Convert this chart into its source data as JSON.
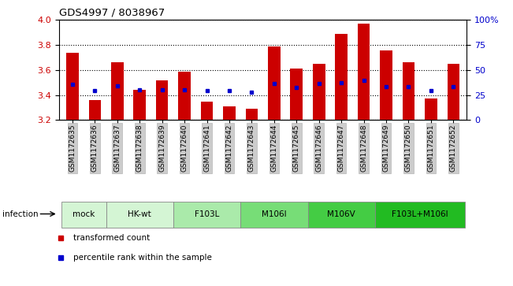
{
  "title": "GDS4997 / 8038967",
  "samples": [
    "GSM1172635",
    "GSM1172636",
    "GSM1172637",
    "GSM1172638",
    "GSM1172639",
    "GSM1172640",
    "GSM1172641",
    "GSM1172642",
    "GSM1172643",
    "GSM1172644",
    "GSM1172645",
    "GSM1172646",
    "GSM1172647",
    "GSM1172648",
    "GSM1172649",
    "GSM1172650",
    "GSM1172651",
    "GSM1172652"
  ],
  "transformed_counts": [
    3.74,
    3.36,
    3.66,
    3.44,
    3.52,
    3.59,
    3.35,
    3.31,
    3.29,
    3.79,
    3.61,
    3.65,
    3.89,
    3.97,
    3.76,
    3.66,
    3.37,
    3.65
  ],
  "percentile_ranks": [
    3.485,
    3.435,
    3.475,
    3.44,
    3.445,
    3.445,
    3.435,
    3.435,
    3.425,
    3.49,
    3.46,
    3.49,
    3.5,
    3.515,
    3.47,
    3.465,
    3.435,
    3.465
  ],
  "groups": [
    {
      "label": "mock",
      "start": 0,
      "end": 2,
      "color": "#d4f5d4"
    },
    {
      "label": "HK-wt",
      "start": 2,
      "end": 5,
      "color": "#d4f5d4"
    },
    {
      "label": "F103L",
      "start": 5,
      "end": 8,
      "color": "#aaeaaa"
    },
    {
      "label": "M106I",
      "start": 8,
      "end": 11,
      "color": "#77dd77"
    },
    {
      "label": "M106V",
      "start": 11,
      "end": 14,
      "color": "#44cc44"
    },
    {
      "label": "F103L+M106I",
      "start": 14,
      "end": 18,
      "color": "#22bb22"
    }
  ],
  "ylim": [
    3.2,
    4.0
  ],
  "yticks": [
    3.2,
    3.4,
    3.6,
    3.8,
    4.0
  ],
  "right_yticks": [
    0,
    25,
    50,
    75,
    100
  ],
  "bar_color": "#cc0000",
  "dot_color": "#0000cc",
  "bar_width": 0.55,
  "ylabel_color": "#cc0000",
  "right_ylabel_color": "#0000cc",
  "legend_items": [
    {
      "color": "#cc0000",
      "label": "transformed count"
    },
    {
      "color": "#0000cc",
      "label": "percentile rank within the sample"
    }
  ],
  "bg_color": "#ffffff",
  "plot_bg": "#ffffff",
  "xtick_bg": "#cccccc"
}
